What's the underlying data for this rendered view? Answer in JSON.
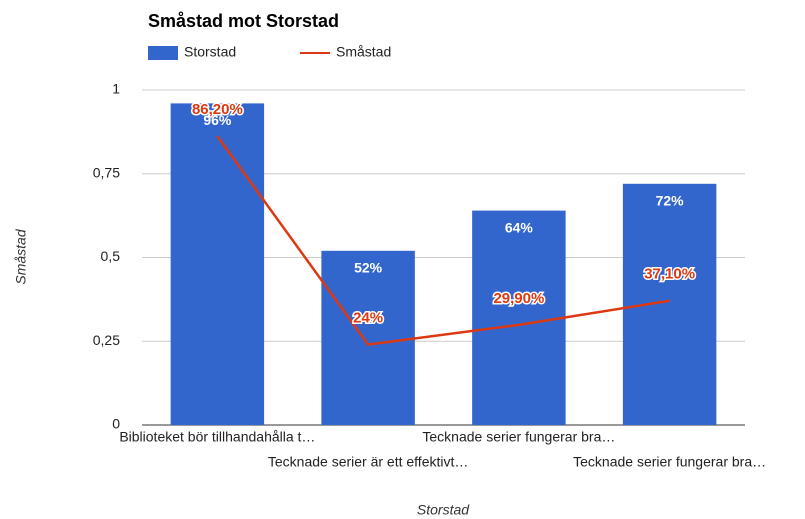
{
  "chart_data": {
    "type": "combo",
    "title": "Småstad mot Storstad",
    "x_label": "Storstad",
    "y_label": "Småstad",
    "categories": [
      "Biblioteket bör tillhandahålla t…",
      "Tecknade serier är ett effektivt…",
      "Tecknade serier fungerar bra…",
      "Tecknade serier fungerar bra…"
    ],
    "series": [
      {
        "name": "Storstad",
        "type": "bar",
        "color": "#3366cc",
        "values": [
          0.96,
          0.52,
          0.64,
          0.72
        ],
        "value_labels": [
          "96%",
          "52%",
          "64%",
          "72%"
        ]
      },
      {
        "name": "Småstad",
        "type": "line",
        "color": "#dc3912",
        "values": [
          0.862,
          0.24,
          0.299,
          0.371
        ],
        "value_labels": [
          "86,20%",
          "24%",
          "29,90%",
          "37,10%"
        ]
      }
    ],
    "ylim": [
      0,
      1
    ],
    "yticks": [
      0,
      {
        "value": 0.25,
        "label": "0,25"
      },
      {
        "value": 0.5,
        "label": "0,5"
      },
      {
        "value": 0.75,
        "label": "0,75"
      },
      1
    ],
    "grid": true,
    "legend": "top"
  }
}
